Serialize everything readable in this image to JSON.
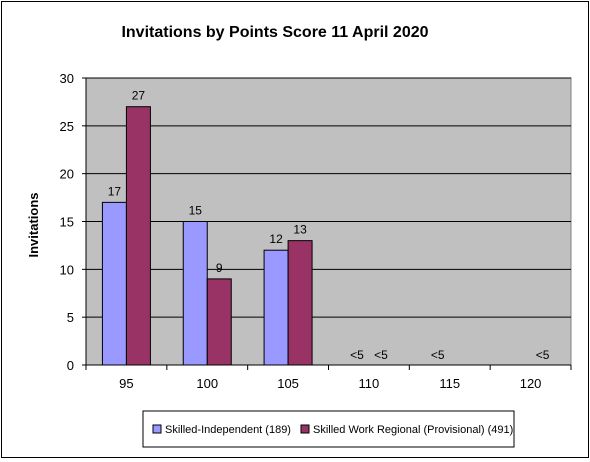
{
  "chart_data": {
    "type": "bar",
    "title": "Invitations by Points Score 11 April 2020",
    "xlabel": "",
    "ylabel": "Invitations",
    "categories": [
      "95",
      "100",
      "105",
      "110",
      "115",
      "120"
    ],
    "ylim": [
      0,
      30
    ],
    "yticks": [
      0,
      5,
      10,
      15,
      20,
      25,
      30
    ],
    "grid": true,
    "legend": "bottom",
    "series": [
      {
        "name": "Skilled-Independent (189)",
        "color": "#9999ff",
        "values": [
          17,
          15,
          12,
          null,
          null,
          null
        ],
        "labels": [
          "17",
          "15",
          "12",
          "<5",
          "<5",
          ""
        ]
      },
      {
        "name": "Skilled Work Regional (Provisional) (491)",
        "color": "#993366",
        "values": [
          27,
          9,
          13,
          null,
          null,
          null
        ],
        "labels": [
          "27",
          "9",
          "13",
          "<5",
          "",
          "<5"
        ]
      }
    ],
    "colors": {
      "plot_background": "#c0c0c0",
      "gridline": "#000000"
    }
  }
}
